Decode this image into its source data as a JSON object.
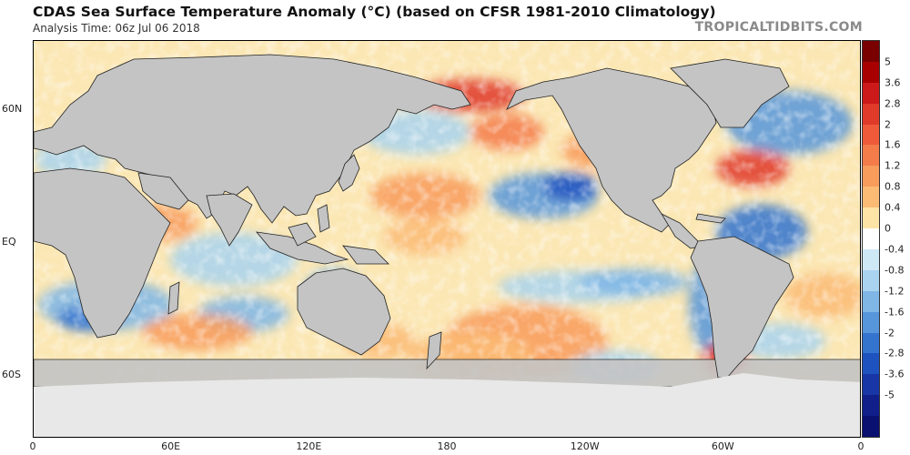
{
  "header": {
    "title": "CDAS Sea Surface Temperature Anomaly (°C) (based on CFSR 1981-2010 Climatology)",
    "analysis_time": "Analysis Time: 06z Jul 06 2018",
    "credit": "TROPICALTIDBITS.COM"
  },
  "map": {
    "projection": "equirectangular, 0°–360° longitude",
    "land_color": "#c4c4c4",
    "ice_color": "#e8e8e8",
    "lat_labels": [
      {
        "text": "60N",
        "lat": 60
      },
      {
        "text": "EQ",
        "lat": 0
      },
      {
        "text": "60S",
        "lat": -60
      }
    ],
    "lon_labels": [
      {
        "text": "0",
        "lon": 0
      },
      {
        "text": "60E",
        "lon": 60
      },
      {
        "text": "120E",
        "lon": 120
      },
      {
        "text": "180",
        "lon": 180
      },
      {
        "text": "120W",
        "lon": 240
      },
      {
        "text": "60W",
        "lon": 300
      },
      {
        "text": "0",
        "lon": 360
      }
    ]
  },
  "colorbar": {
    "labels": [
      "5",
      "3.6",
      "2.8",
      "2",
      "1.6",
      "1.2",
      "0.8",
      "0.4",
      "0",
      "-0.4",
      "-0.8",
      "-1.2",
      "-1.6",
      "-2",
      "-2.8",
      "-3.6",
      "-5"
    ],
    "colors": [
      "#7a0000",
      "#a80000",
      "#cc1a1a",
      "#e03a2a",
      "#ee5a3a",
      "#f47c4a",
      "#f89c5c",
      "#fbbb75",
      "#fde3a5",
      "#ffffff",
      "#cfe8f6",
      "#a9d3ef",
      "#7fb6e6",
      "#5796db",
      "#3474cf",
      "#1e52bf",
      "#1836a6",
      "#101f8a",
      "#0a1070"
    ]
  }
}
